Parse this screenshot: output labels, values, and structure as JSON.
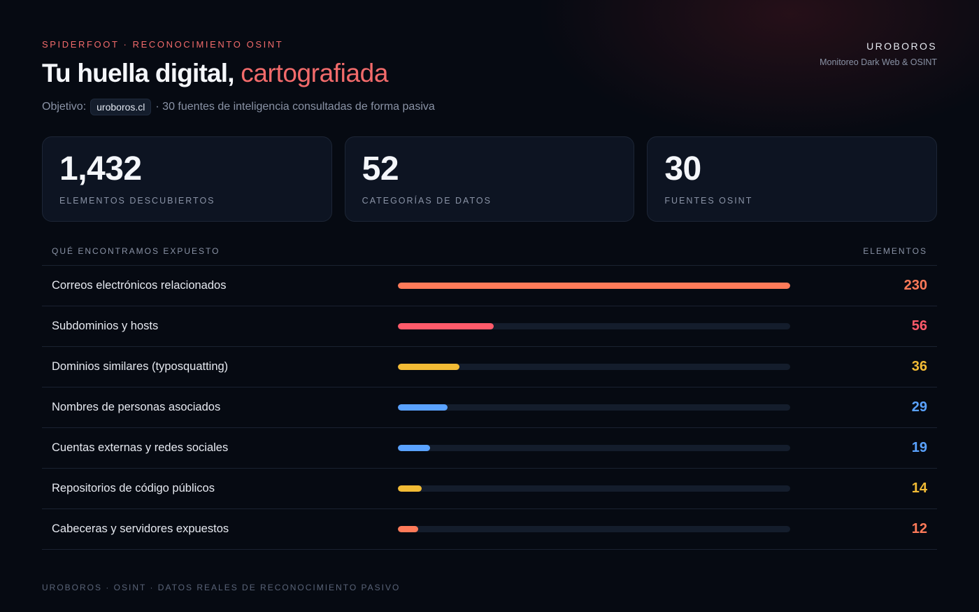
{
  "header": {
    "eyebrow": "SPIDERFOOT · RECONOCIMIENTO OSINT",
    "title_main": "Tu huella digital,",
    "title_accent": "cartografiada",
    "objective_label": "Objetivo:",
    "objective_target": "uroboros.cl",
    "objective_desc": "· 30 fuentes de inteligencia consultadas de forma pasiva"
  },
  "brand": {
    "name": "UROBOROS",
    "tagline": "Monitoreo Dark Web & OSINT"
  },
  "stats": [
    {
      "value": "1,432",
      "label": "ELEMENTOS DESCUBIERTOS"
    },
    {
      "value": "52",
      "label": "CATEGORÍAS DE DATOS"
    },
    {
      "value": "30",
      "label": "FUENTES OSINT"
    }
  ],
  "table": {
    "col_left": "QUÉ ENCONTRAMOS EXPUESTO",
    "col_right": "ELEMENTOS",
    "max": 230,
    "rows": [
      {
        "label": "Correos electrónicos relacionados",
        "value": 230,
        "color": "#ff7a59"
      },
      {
        "label": "Subdominios y hosts",
        "value": 56,
        "color": "#ff5a6a"
      },
      {
        "label": "Dominios similares (typosquatting)",
        "value": 36,
        "color": "#f2bb35"
      },
      {
        "label": "Nombres de personas asociados",
        "value": 29,
        "color": "#5aa2ff"
      },
      {
        "label": "Cuentas externas y redes sociales",
        "value": 19,
        "color": "#5aa2ff"
      },
      {
        "label": "Repositorios de código públicos",
        "value": 14,
        "color": "#f2bb35"
      },
      {
        "label": "Cabeceras y servidores expuestos",
        "value": 12,
        "color": "#ff7a59"
      }
    ]
  },
  "footer": "UROBOROS · OSINT · DATOS REALES DE RECONOCIMIENTO PASIVO"
}
